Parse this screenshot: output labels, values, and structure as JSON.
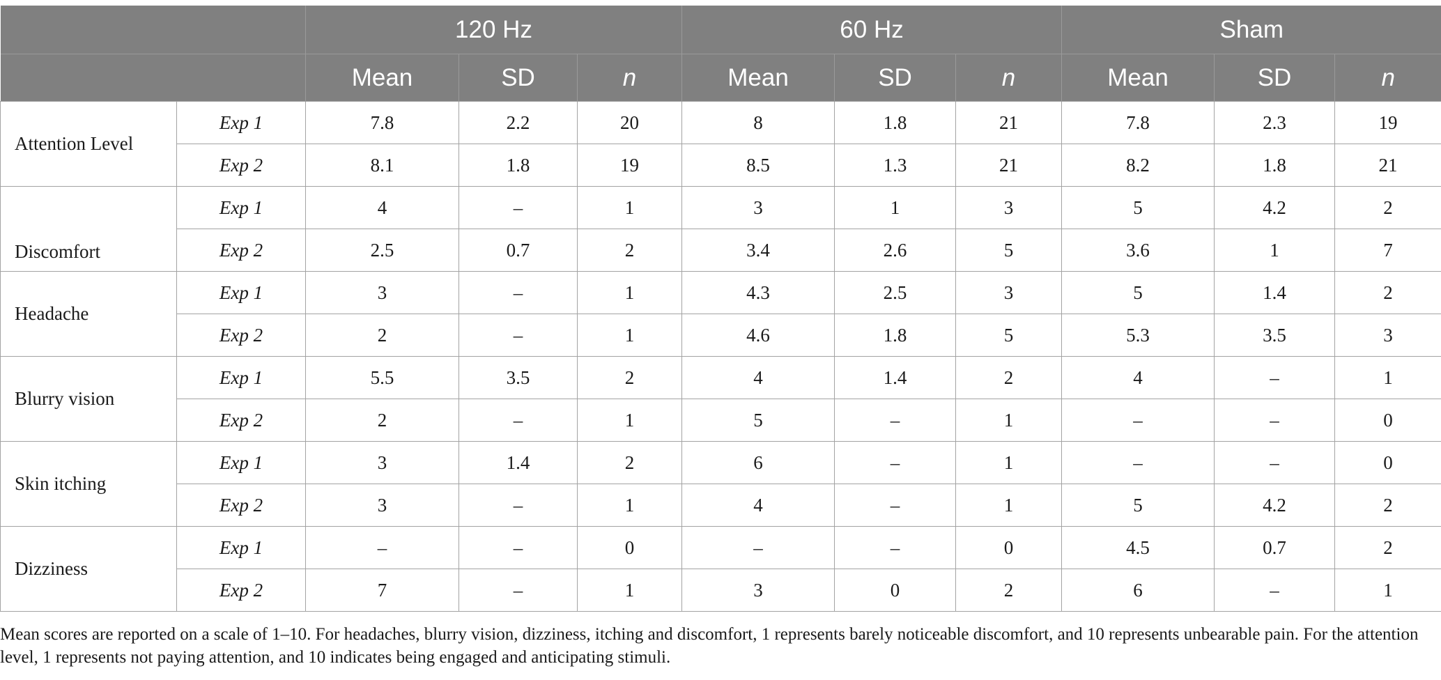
{
  "header": {
    "groups": [
      "120 Hz",
      "60 Hz",
      "Sham"
    ],
    "sub": [
      "Mean",
      "SD",
      "n"
    ]
  },
  "rows": [
    {
      "label": "Attention Level",
      "exp": [
        "Exp 1",
        "Exp 2"
      ],
      "vals": [
        [
          "7.8",
          "2.2",
          "20",
          "8",
          "1.8",
          "21",
          "7.8",
          "2.3",
          "19"
        ],
        [
          "8.1",
          "1.8",
          "19",
          "8.5",
          "1.3",
          "21",
          "8.2",
          "1.8",
          "21"
        ]
      ]
    },
    {
      "label": "Discomfort",
      "exp": [
        "Exp 1",
        "Exp 2"
      ],
      "vals": [
        [
          "4",
          "–",
          "1",
          "3",
          "1",
          "3",
          "5",
          "4.2",
          "2"
        ],
        [
          "2.5",
          "0.7",
          "2",
          "3.4",
          "2.6",
          "5",
          "3.6",
          "1",
          "7"
        ]
      ]
    },
    {
      "label": "Headache",
      "exp": [
        "Exp 1",
        "Exp 2"
      ],
      "vals": [
        [
          "3",
          "–",
          "1",
          "4.3",
          "2.5",
          "3",
          "5",
          "1.4",
          "2"
        ],
        [
          "2",
          "–",
          "1",
          "4.6",
          "1.8",
          "5",
          "5.3",
          "3.5",
          "3"
        ]
      ]
    },
    {
      "label": "Blurry vision",
      "exp": [
        "Exp 1",
        "Exp 2"
      ],
      "vals": [
        [
          "5.5",
          "3.5",
          "2",
          "4",
          "1.4",
          "2",
          "4",
          "–",
          "1"
        ],
        [
          "2",
          "–",
          "1",
          "5",
          "–",
          "1",
          "–",
          "–",
          "0"
        ]
      ]
    },
    {
      "label": "Skin itching",
      "exp": [
        "Exp 1",
        "Exp 2"
      ],
      "vals": [
        [
          "3",
          "1.4",
          "2",
          "6",
          "–",
          "1",
          "–",
          "–",
          "0"
        ],
        [
          "3",
          "–",
          "1",
          "4",
          "–",
          "1",
          "5",
          "4.2",
          "2"
        ]
      ]
    },
    {
      "label": "Dizziness",
      "exp": [
        "Exp 1",
        "Exp 2"
      ],
      "vals": [
        [
          "–",
          "–",
          "0",
          "–",
          "–",
          "0",
          "4.5",
          "0.7",
          "2"
        ],
        [
          "7",
          "–",
          "1",
          "3",
          "0",
          "2",
          "6",
          "–",
          "1"
        ]
      ]
    }
  ],
  "footnote": "Mean scores are reported on a scale of 1–10. For headaches, blurry vision, dizziness, itching and discomfort, 1 represents barely noticeable discomfort, and 10 represents unbearable pain. For the attention level, 1 represents not paying attention, and 10 indicates being engaged and anticipating stimuli."
}
